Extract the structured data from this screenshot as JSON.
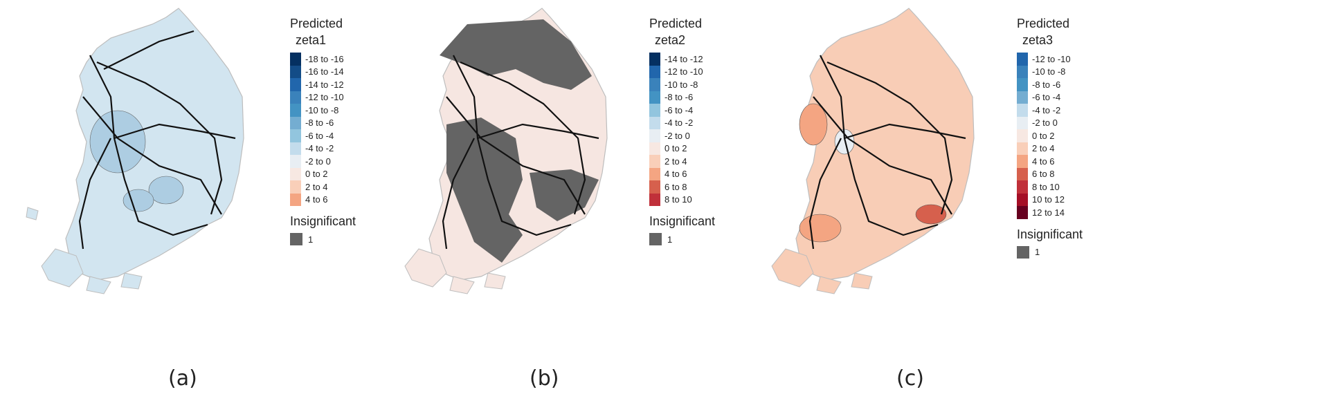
{
  "panels": [
    {
      "caption": "(a)",
      "legend_title": "Predicted",
      "legend_sub": "zeta1",
      "insignificant_title": "Insignificant",
      "insignificant_value": "1",
      "base_fill": "#d2e5f0",
      "legend": [
        {
          "label": "-18 to -16",
          "color": "#053061"
        },
        {
          "label": "-16 to -14",
          "color": "#134c87"
        },
        {
          "label": "-14 to -12",
          "color": "#2166ac"
        },
        {
          "label": "-12 to -10",
          "color": "#3a82bb"
        },
        {
          "label": "-10 to -8",
          "color": "#4393c3"
        },
        {
          "label": "-8 to -6",
          "color": "#74add1"
        },
        {
          "label": "-6 to -4",
          "color": "#92c5de"
        },
        {
          "label": "-4 to -2",
          "color": "#c3dcec"
        },
        {
          "label": "-2 to 0",
          "color": "#e8eef3"
        },
        {
          "label": "0 to 2",
          "color": "#f7e8e2"
        },
        {
          "label": "2 to 4",
          "color": "#f9cfb9"
        },
        {
          "label": "4 to 6",
          "color": "#f4a582"
        }
      ]
    },
    {
      "caption": "(b)",
      "legend_title": "Predicted",
      "legend_sub": "zeta2",
      "insignificant_title": "Insignificant",
      "insignificant_value": "1",
      "base_fill": "#f6e6e1",
      "legend": [
        {
          "label": "-14 to -12",
          "color": "#053061"
        },
        {
          "label": "-12 to -10",
          "color": "#2166ac"
        },
        {
          "label": "-10 to -8",
          "color": "#3a82bb"
        },
        {
          "label": "-8 to -6",
          "color": "#4393c3"
        },
        {
          "label": "-6 to -4",
          "color": "#92c5de"
        },
        {
          "label": "-4 to -2",
          "color": "#c3dcec"
        },
        {
          "label": "-2 to 0",
          "color": "#e8eef3"
        },
        {
          "label": "0 to 2",
          "color": "#f7e8e2"
        },
        {
          "label": "2 to 4",
          "color": "#f9cfb9"
        },
        {
          "label": "4 to 6",
          "color": "#f4a582"
        },
        {
          "label": "6 to 8",
          "color": "#d6604d"
        },
        {
          "label": "8 to 10",
          "color": "#c0303a"
        }
      ]
    },
    {
      "caption": "(c)",
      "legend_title": "Predicted",
      "legend_sub": "zeta3",
      "insignificant_title": "Insignificant",
      "insignificant_value": "1",
      "base_fill": "#f8cdb6",
      "legend": [
        {
          "label": "-12 to -10",
          "color": "#2166ac"
        },
        {
          "label": "-10 to -8",
          "color": "#3a82bb"
        },
        {
          "label": "-8 to -6",
          "color": "#4393c3"
        },
        {
          "label": "-6 to -4",
          "color": "#74add1"
        },
        {
          "label": "-4 to -2",
          "color": "#c3dcec"
        },
        {
          "label": "-2 to 0",
          "color": "#e8eef3"
        },
        {
          "label": "0 to 2",
          "color": "#f7e8e2"
        },
        {
          "label": "2 to 4",
          "color": "#f9cfb9"
        },
        {
          "label": "4 to 6",
          "color": "#f4a582"
        },
        {
          "label": "6 to 8",
          "color": "#d6604d"
        },
        {
          "label": "8 to 10",
          "color": "#c0303a"
        },
        {
          "label": "10 to 12",
          "color": "#a50f26"
        },
        {
          "label": "12 to 14",
          "color": "#67001f"
        }
      ]
    }
  ]
}
